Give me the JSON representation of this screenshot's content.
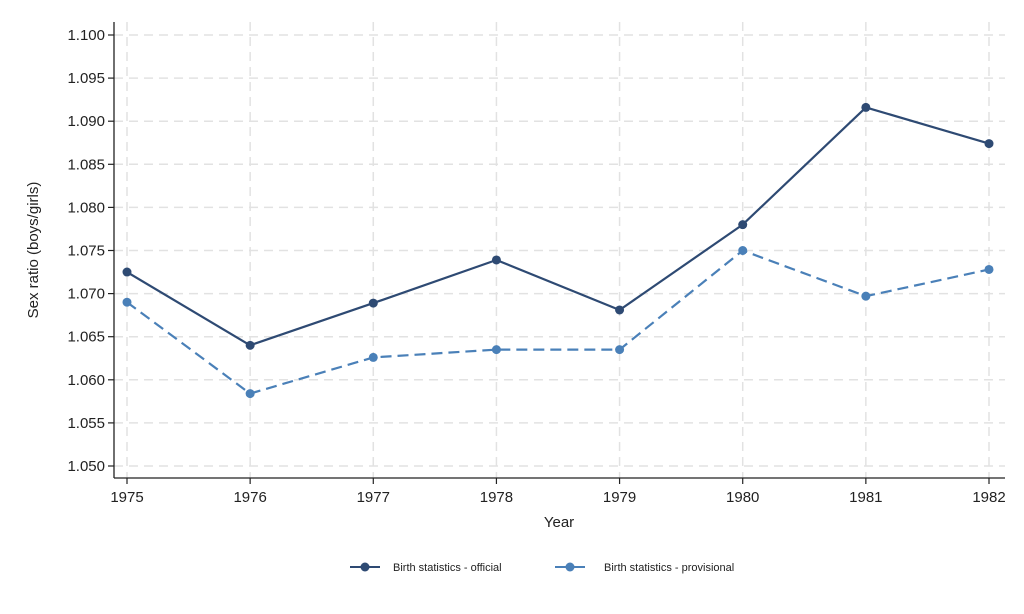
{
  "chart_data": {
    "type": "line",
    "title": "",
    "xlabel": "Year",
    "ylabel": "Sex ratio (boys/girls)",
    "categories": [
      "1975",
      "1976",
      "1977",
      "1978",
      "1979",
      "1980",
      "1981",
      "1982"
    ],
    "yticks": [
      "1.050",
      "1.055",
      "1.060",
      "1.065",
      "1.070",
      "1.075",
      "1.080",
      "1.085",
      "1.090",
      "1.095",
      "1.100"
    ],
    "ylim": [
      1.05,
      1.1
    ],
    "grid": true,
    "legend_position": "bottom",
    "series": [
      {
        "name": "Birth statistics - official",
        "color": "#2e4a73",
        "style": "solid",
        "values": [
          1.0725,
          1.064,
          1.0689,
          1.0739,
          1.0681,
          1.078,
          1.0916,
          1.0874
        ]
      },
      {
        "name": "Birth statistics - provisional",
        "color": "#4a80b8",
        "style": "dashed",
        "values": [
          1.069,
          1.0584,
          1.0626,
          1.0635,
          1.0635,
          1.075,
          1.0697,
          1.0728
        ]
      }
    ]
  }
}
